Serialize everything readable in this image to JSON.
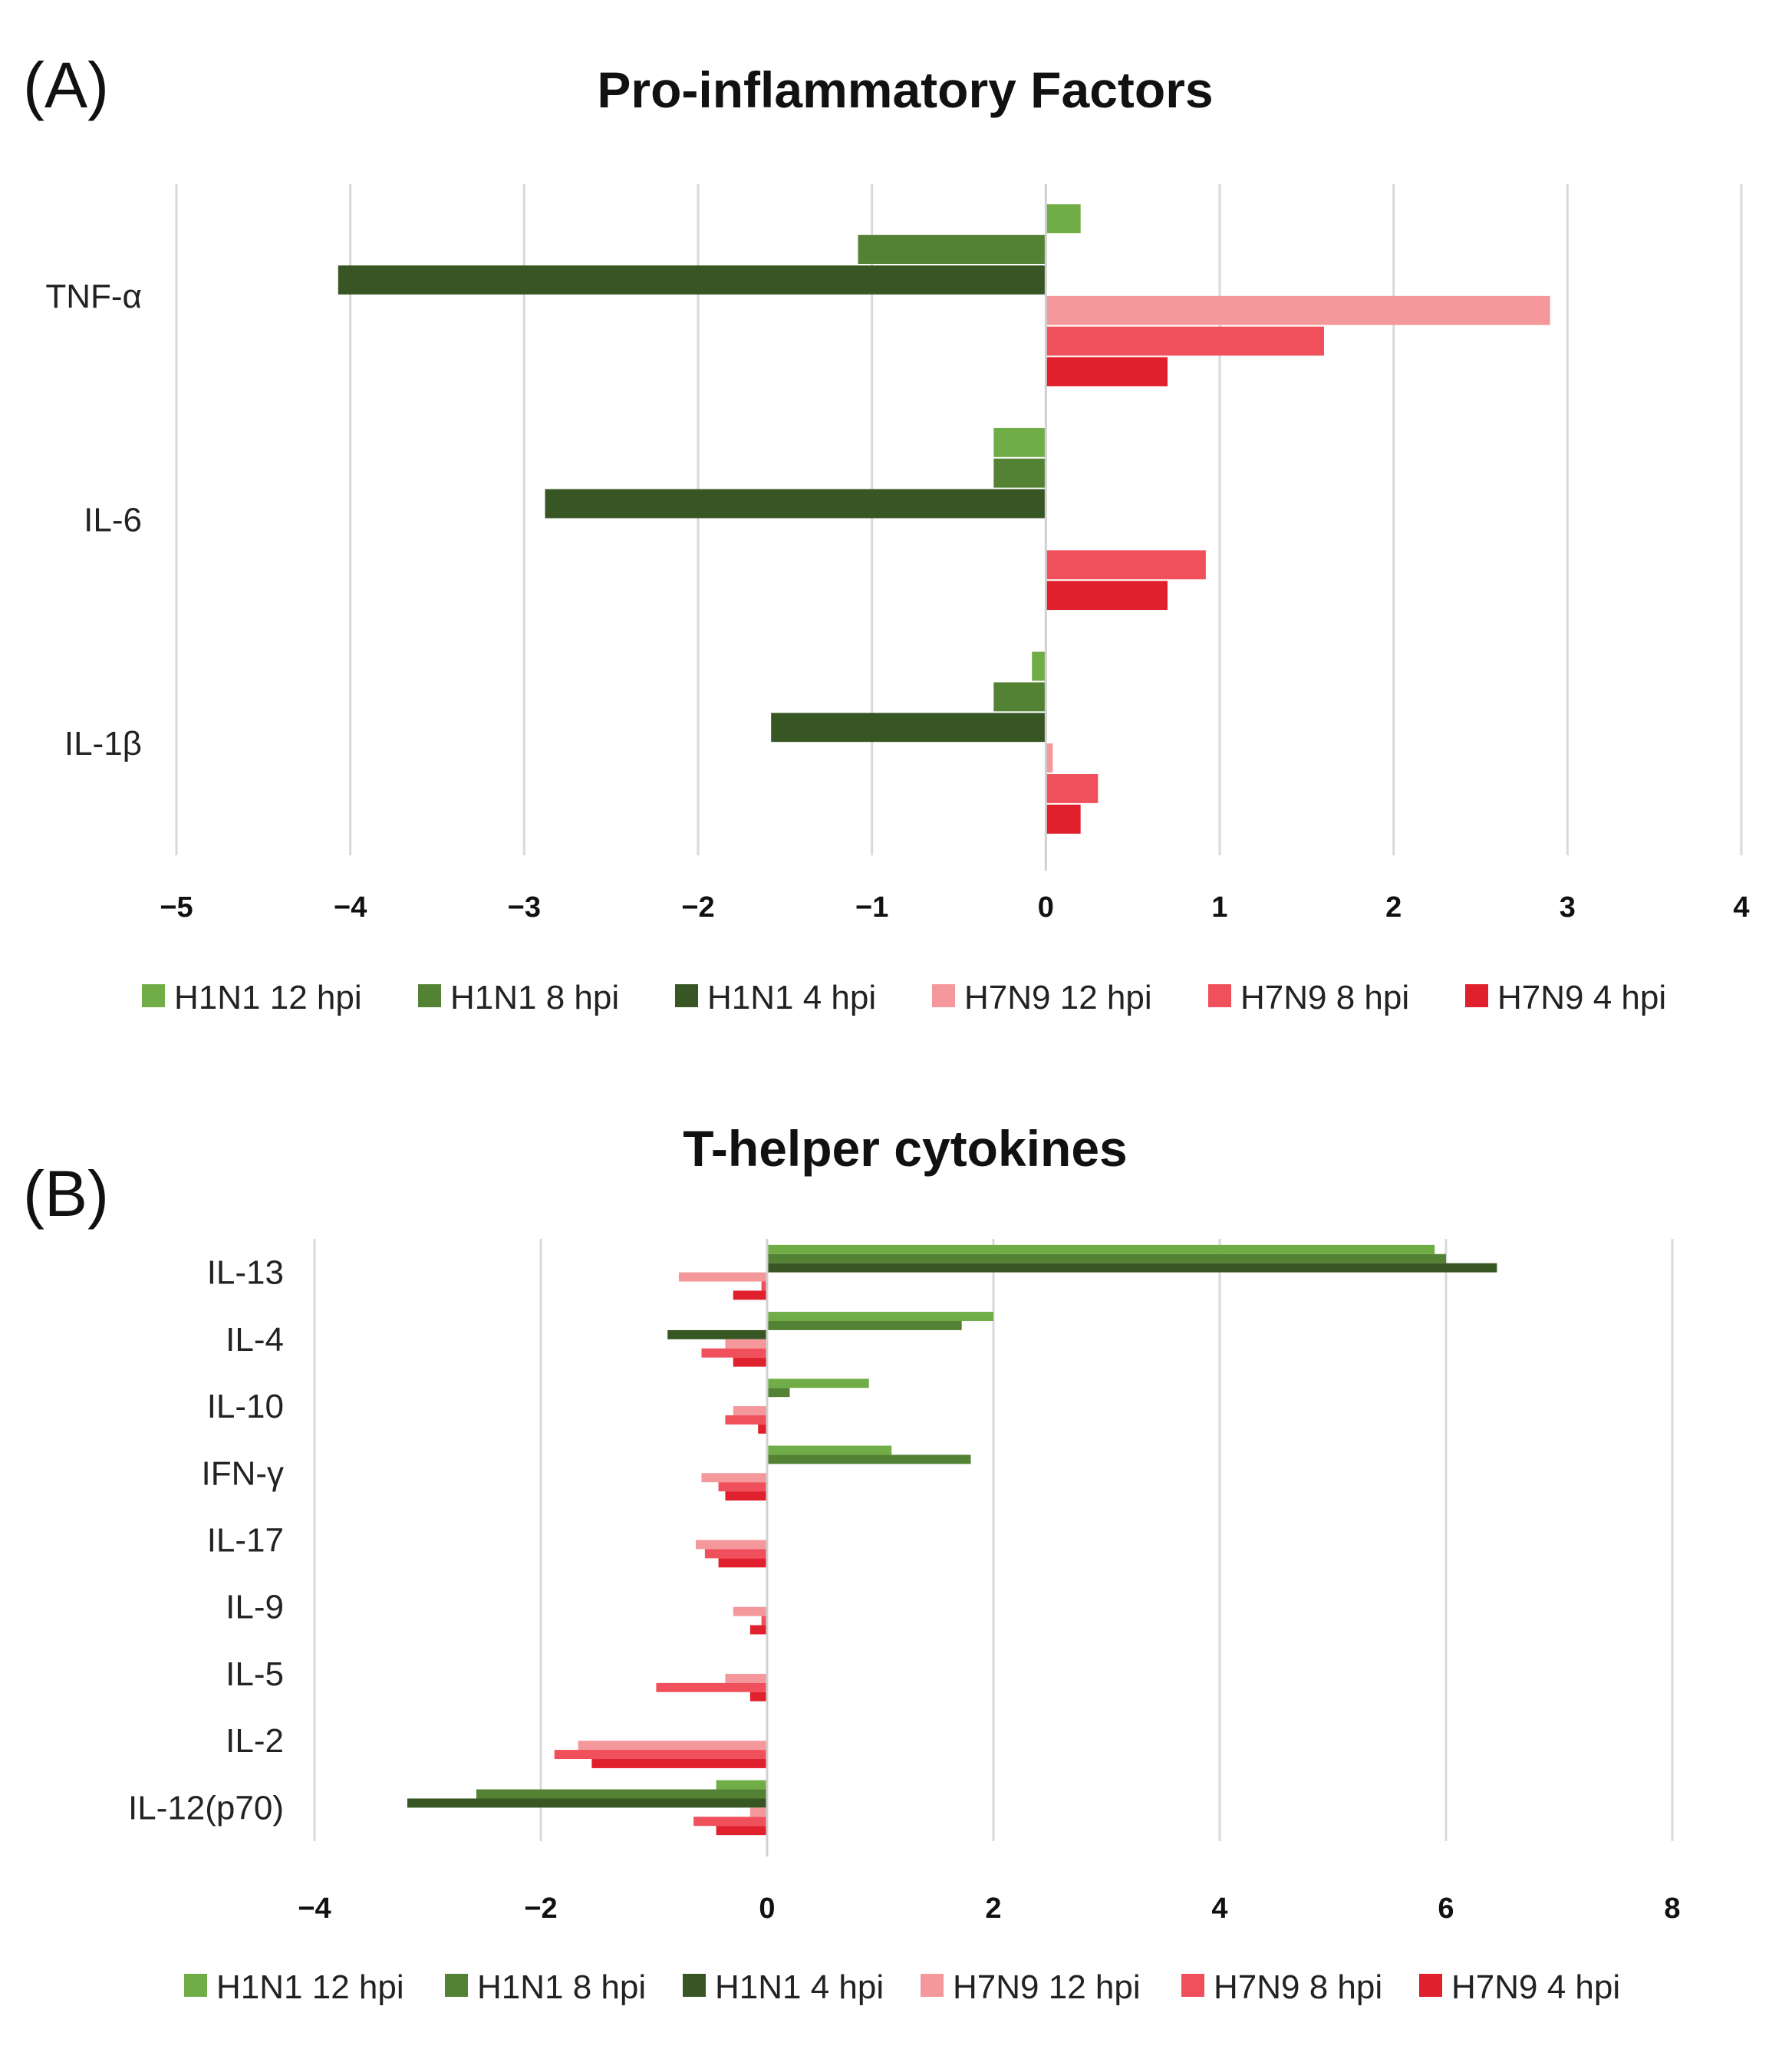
{
  "panel_labels": [
    "(A)",
    "(B)"
  ],
  "chart_data": [
    {
      "type": "bar",
      "orientation": "horizontal",
      "title": "Pro-inflammatory Factors",
      "categories": [
        "TNF-α",
        "IL-6",
        "IL-1β"
      ],
      "xlim": [
        -5,
        4
      ],
      "xticks": [
        -5,
        -4,
        -3,
        -2,
        -1,
        0,
        1,
        2,
        3,
        4
      ],
      "tick_labels": [
        "−5",
        "−4",
        "−3",
        "−2",
        "−1",
        "0",
        "1",
        "2",
        "3",
        "4"
      ],
      "xlabel": "",
      "ylabel": "",
      "grid": true,
      "legend_position": "bottom",
      "series": [
        {
          "name": "H1N1 12 hpi",
          "color": "#70ad47",
          "values": [
            0.2,
            -0.3,
            -0.08
          ]
        },
        {
          "name": "H1N1 8 hpi",
          "color": "#548235",
          "values": [
            -1.08,
            -0.3,
            -0.3
          ]
        },
        {
          "name": "H1N1 4 hpi",
          "color": "#375623",
          "values": [
            -4.07,
            -2.88,
            -1.58
          ]
        },
        {
          "name": "H7N9 12 hpi",
          "color": "#f4989c",
          "values": [
            2.9,
            0.0,
            0.04
          ]
        },
        {
          "name": "H7N9 8 hpi",
          "color": "#f0505c",
          "values": [
            1.6,
            0.92,
            0.3
          ]
        },
        {
          "name": "H7N9 4 hpi",
          "color": "#e0202c",
          "values": [
            0.7,
            0.7,
            0.2
          ]
        }
      ]
    },
    {
      "type": "bar",
      "orientation": "horizontal",
      "title": "T-helper cytokines",
      "categories": [
        "IL-13",
        "IL-4",
        "IL-10",
        "IFN-γ",
        "IL-17",
        "IL-9",
        "IL-5",
        "IL-2",
        "IL-12(p70)"
      ],
      "xlim": [
        -4,
        8
      ],
      "xticks": [
        -4,
        -2,
        0,
        2,
        4,
        6,
        8
      ],
      "tick_labels": [
        "−4",
        "−2",
        "0",
        "2",
        "4",
        "6",
        "8"
      ],
      "xlabel": "",
      "ylabel": "",
      "grid": true,
      "legend_position": "bottom",
      "series": [
        {
          "name": "H1N1 12 hpi",
          "color": "#70ad47",
          "values": [
            5.9,
            2.0,
            0.9,
            1.1,
            0.0,
            0.0,
            0.0,
            0.0,
            -0.45
          ]
        },
        {
          "name": "H1N1 8 hpi",
          "color": "#548235",
          "values": [
            6.0,
            1.72,
            0.2,
            1.8,
            0.0,
            0.0,
            0.0,
            0.0,
            -2.57
          ]
        },
        {
          "name": "H1N1 4 hpi",
          "color": "#375623",
          "values": [
            6.45,
            -0.88,
            0.0,
            0.0,
            0.0,
            0.0,
            0.0,
            0.0,
            -3.18
          ]
        },
        {
          "name": "H7N9 12 hpi",
          "color": "#f4989c",
          "values": [
            -0.78,
            -0.37,
            -0.3,
            -0.58,
            -0.63,
            -0.3,
            -0.37,
            -1.67,
            -0.15
          ]
        },
        {
          "name": "H7N9 8 hpi",
          "color": "#f0505c",
          "values": [
            -0.05,
            -0.58,
            -0.37,
            -0.43,
            -0.55,
            -0.05,
            -0.98,
            -1.88,
            -0.65
          ]
        },
        {
          "name": "H7N9 4 hpi",
          "color": "#e0202c",
          "values": [
            -0.3,
            -0.3,
            -0.08,
            -0.37,
            -0.43,
            -0.15,
            -0.15,
            -1.55,
            -0.45
          ]
        }
      ]
    }
  ]
}
